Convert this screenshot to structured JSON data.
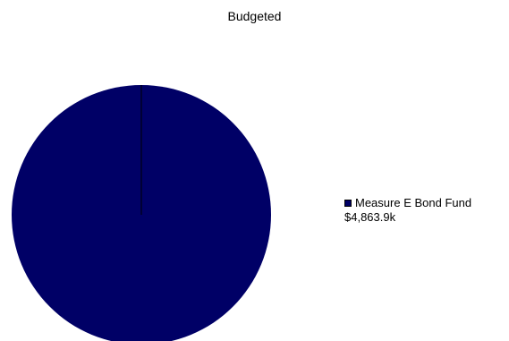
{
  "chart_data": {
    "type": "pie",
    "title": "Budgeted",
    "slices": [
      {
        "label": "Measure E Bond Fund",
        "value": 4863.9,
        "value_label": "$4,863.9k",
        "color": "#000066"
      }
    ],
    "legend_position": "right"
  }
}
